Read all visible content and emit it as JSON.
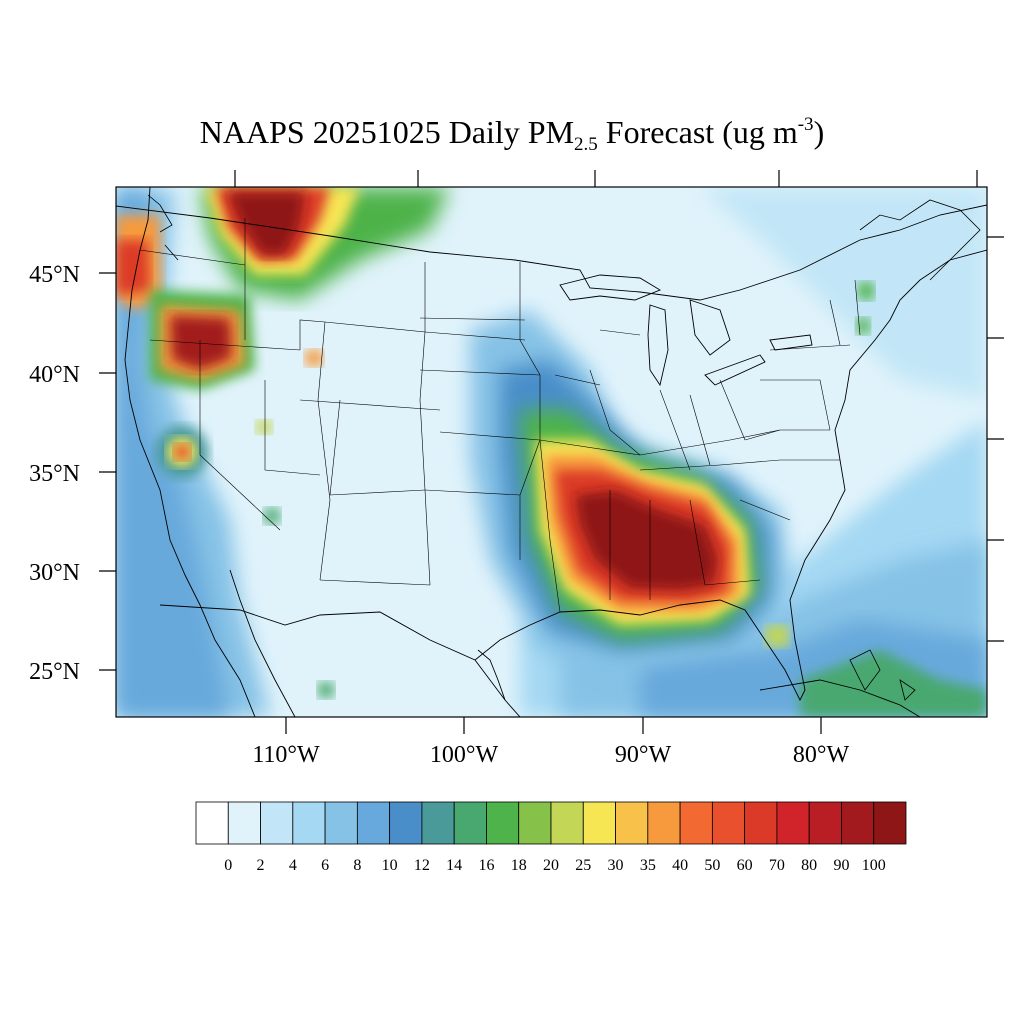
{
  "title": {
    "prefix": "NAAPS 20251025 Daily PM",
    "subscript": "2.5",
    "middle": " Forecast (ug m",
    "superscript": "-3",
    "suffix": ")"
  },
  "map": {
    "region": "Contiguous United States",
    "lat_labels": [
      "45°N",
      "40°N",
      "35°N",
      "30°N",
      "25°N"
    ],
    "lon_labels": [
      "110°W",
      "100°W",
      "90°W",
      "80°W"
    ],
    "land_background_color": "#e0f3fb"
  },
  "colorbar": {
    "labels": [
      "0",
      "2",
      "4",
      "6",
      "8",
      "10",
      "12",
      "14",
      "16",
      "18",
      "20",
      "25",
      "30",
      "35",
      "40",
      "50",
      "60",
      "70",
      "80",
      "90",
      "100"
    ],
    "colors": [
      "#ffffff",
      "#e0f3fb",
      "#c2e6f7",
      "#a4d8f3",
      "#86c2e6",
      "#67a9dc",
      "#4a8ec9",
      "#4a9a9a",
      "#48a870",
      "#4db34a",
      "#86c14a",
      "#c3d656",
      "#f7e654",
      "#f8c14a",
      "#f79a3e",
      "#f26a32",
      "#e8502e",
      "#dc3a28",
      "#d0232a",
      "#b81e24",
      "#a31a1e",
      "#8f1616"
    ]
  },
  "plumes": [
    {
      "name": "mississippi-valley",
      "level": 100
    },
    {
      "name": "northern-rockies",
      "level": 100
    },
    {
      "name": "oregon",
      "level": 90
    },
    {
      "name": "california",
      "level": 40
    }
  ]
}
